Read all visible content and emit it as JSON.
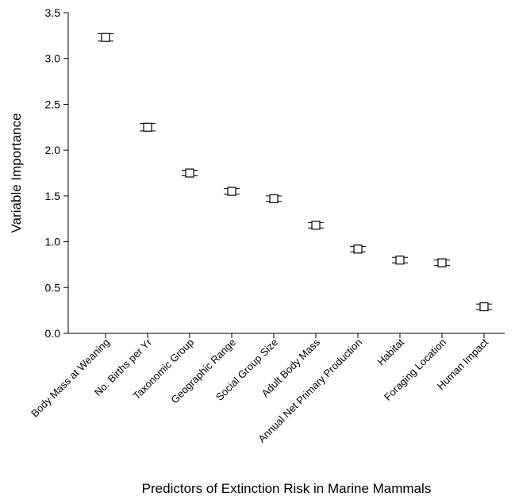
{
  "chart_data": {
    "type": "scatter",
    "title": "",
    "xlabel": "Predictors of Extinction Risk in Marine Mammals",
    "ylabel": "Variable Importance",
    "ylim": [
      0,
      3.5
    ],
    "yticks": [
      "0.0",
      "0.5",
      "1.0",
      "1.5",
      "2.0",
      "2.5",
      "3.0",
      "3.5"
    ],
    "categories": [
      "Body Mass at Weaning",
      "No. Births per Yr",
      "Taxonomic Group",
      "Geographic Range",
      "Social Group Size",
      "Adult Body Mass",
      "Annual Net Primary Production",
      "Habitat",
      "Foraging Location",
      "Human Impact"
    ],
    "values": [
      3.23,
      2.25,
      1.75,
      1.55,
      1.47,
      1.18,
      0.92,
      0.8,
      0.77,
      0.29
    ],
    "error": [
      0.04,
      0.04,
      0.03,
      0.03,
      0.03,
      0.03,
      0.03,
      0.03,
      0.03,
      0.03
    ],
    "marker": "open-square",
    "grid": false,
    "legend": "none"
  }
}
